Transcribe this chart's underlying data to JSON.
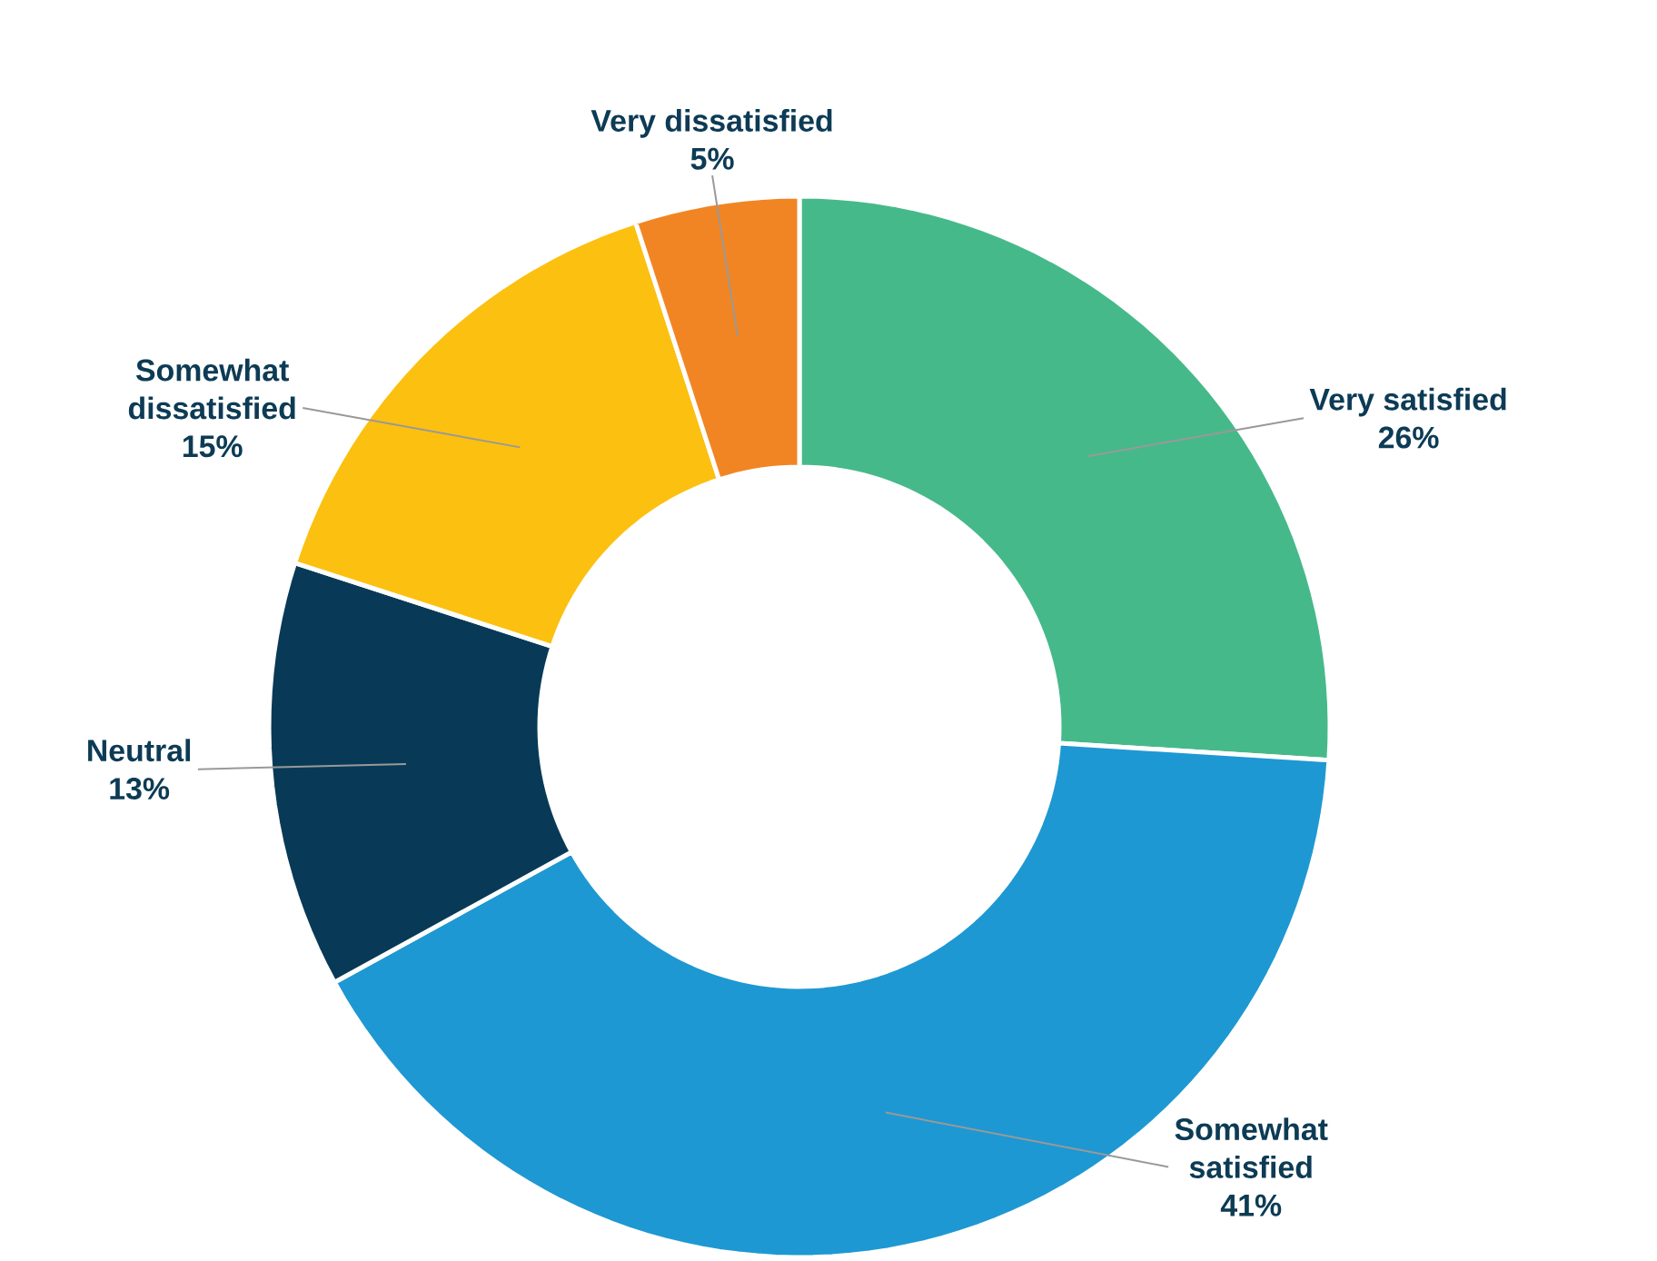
{
  "chart_data": {
    "type": "donut",
    "categories": [
      "Very satisfied",
      "Somewhat satisfied",
      "Neutral",
      "Somewhat dissatisfied",
      "Very dissatisfied"
    ],
    "values": [
      26,
      41,
      13,
      15,
      5
    ],
    "colors": [
      "#46b98a",
      "#1e98d2",
      "#083a57",
      "#fcc010",
      "#f28523"
    ],
    "value_labels": [
      "26%",
      "41%",
      "13%",
      "15%",
      "5%"
    ]
  }
}
